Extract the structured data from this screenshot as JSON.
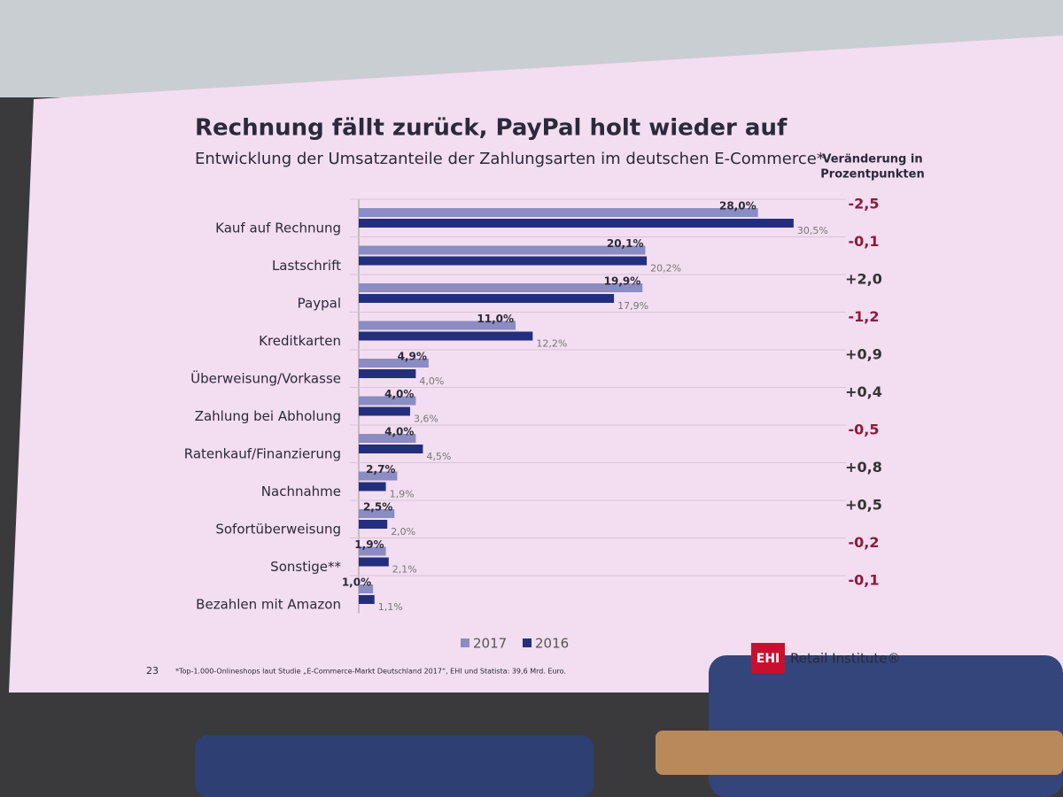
{
  "chart_data": {
    "type": "bar",
    "orientation": "horizontal",
    "title": "Rechnung fällt zurück, PayPal holt wieder auf",
    "subtitle": "Entwicklung der Umsatzanteile der Zahlungsarten im deutschen E-Commerce*",
    "change_header": [
      "Veränderung in",
      "Prozentpunkten"
    ],
    "categories": [
      "Kauf auf Rechnung",
      "Lastschrift",
      "Paypal",
      "Kreditkarten",
      "Überweisung/Vorkasse",
      "Zahlung bei Abholung",
      "Ratenkauf/Finanzierung",
      "Nachnahme",
      "Sofortüberweisung",
      "Sonstige**",
      "Bezahlen mit Amazon"
    ],
    "series": [
      {
        "name": "2017",
        "color": "#8a8cc2",
        "values": [
          28.0,
          20.1,
          19.9,
          11.0,
          4.9,
          4.0,
          4.0,
          2.7,
          2.5,
          1.9,
          1.0
        ],
        "value_labels": [
          "28,0%",
          "20,1%",
          "19,9%",
          "11,0%",
          "4,9%",
          "4,0%",
          "4,0%",
          "2,7%",
          "2,5%",
          "1,9%",
          "1,0%"
        ]
      },
      {
        "name": "2016",
        "color": "#232f7c",
        "values": [
          30.5,
          20.2,
          17.9,
          12.2,
          4.0,
          3.6,
          4.5,
          1.9,
          2.0,
          2.1,
          1.1
        ],
        "value_labels": [
          "30,5%",
          "20,2%",
          "17,9%",
          "12,2%",
          "4,0%",
          "3,6%",
          "4,5%",
          "1,9%",
          "2,0%",
          "2,1%",
          "1,1%"
        ]
      }
    ],
    "changes": [
      "-2,5",
      "-0,1",
      "+2,0",
      "-1,2",
      "+0,9",
      "+0,4",
      "-0,5",
      "+0,8",
      "+0,5",
      "-0,2",
      "-0,1"
    ],
    "xlim": [
      0,
      32
    ],
    "page_number": "23",
    "footnote": "*Top-1.000-Onlineshops laut Studie „E-Commerce-Markt Deutschland 2017“, EHI und Statista: 39,6 Mrd. Euro.",
    "logo": {
      "mark": "EHI",
      "text": "Retail Institute®"
    }
  }
}
